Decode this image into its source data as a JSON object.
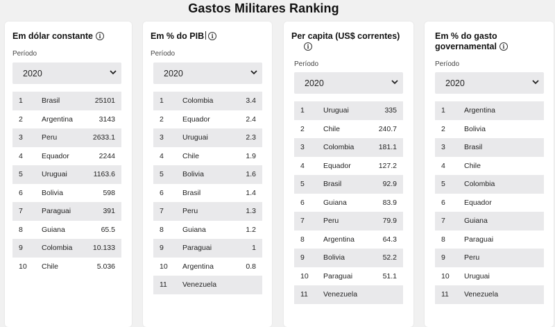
{
  "title": "Gastos Militares Ranking",
  "colors": {
    "row_shade": "#e9e9eb",
    "card_bg": "#ffffff",
    "page_bg": "#f1f1f1"
  },
  "cards": [
    {
      "title": "Em dólar constante",
      "periodo_label": "Período",
      "year": "2020",
      "rows": [
        {
          "rank": "1",
          "country": "Brasil",
          "value": "25101"
        },
        {
          "rank": "2",
          "country": "Argentina",
          "value": "3143"
        },
        {
          "rank": "3",
          "country": "Peru",
          "value": "2633.1"
        },
        {
          "rank": "4",
          "country": "Equador",
          "value": "2244"
        },
        {
          "rank": "5",
          "country": "Uruguai",
          "value": "1163.6"
        },
        {
          "rank": "6",
          "country": "Bolivia",
          "value": "598"
        },
        {
          "rank": "7",
          "country": "Paraguai",
          "value": "391"
        },
        {
          "rank": "8",
          "country": "Guiana",
          "value": "65.5"
        },
        {
          "rank": "9",
          "country": "Colombia",
          "value": "10.133"
        },
        {
          "rank": "10",
          "country": "Chile",
          "value": "5.036"
        }
      ]
    },
    {
      "title": "Em % do PIB",
      "periodo_label": "Período",
      "year": "2020",
      "rows": [
        {
          "rank": "1",
          "country": "Colombia",
          "value": "3.4"
        },
        {
          "rank": "2",
          "country": "Equador",
          "value": "2.4"
        },
        {
          "rank": "3",
          "country": "Uruguai",
          "value": "2.3"
        },
        {
          "rank": "4",
          "country": "Chile",
          "value": "1.9"
        },
        {
          "rank": "5",
          "country": "Bolivia",
          "value": "1.6"
        },
        {
          "rank": "6",
          "country": "Brasil",
          "value": "1.4"
        },
        {
          "rank": "7",
          "country": "Peru",
          "value": "1.3"
        },
        {
          "rank": "8",
          "country": "Guiana",
          "value": "1.2"
        },
        {
          "rank": "9",
          "country": "Paraguai",
          "value": "1"
        },
        {
          "rank": "10",
          "country": "Argentina",
          "value": "0.8"
        },
        {
          "rank": "11",
          "country": "Venezuela",
          "value": ""
        }
      ]
    },
    {
      "title": "Per capita (US$ correntes)",
      "periodo_label": "Período",
      "year": "2020",
      "rows": [
        {
          "rank": "1",
          "country": "Uruguai",
          "value": "335"
        },
        {
          "rank": "2",
          "country": "Chile",
          "value": "240.7"
        },
        {
          "rank": "3",
          "country": "Colombia",
          "value": "181.1"
        },
        {
          "rank": "4",
          "country": "Equador",
          "value": "127.2"
        },
        {
          "rank": "5",
          "country": "Brasil",
          "value": "92.9"
        },
        {
          "rank": "6",
          "country": "Guiana",
          "value": "83.9"
        },
        {
          "rank": "7",
          "country": "Peru",
          "value": "79.9"
        },
        {
          "rank": "8",
          "country": "Argentina",
          "value": "64.3"
        },
        {
          "rank": "9",
          "country": "Bolivia",
          "value": "52.2"
        },
        {
          "rank": "10",
          "country": "Paraguai",
          "value": "51.1"
        },
        {
          "rank": "11",
          "country": "Venezuela",
          "value": ""
        }
      ]
    },
    {
      "title": "Em % do gasto governamental",
      "periodo_label": "Período",
      "year": "2020",
      "rows": [
        {
          "rank": "1",
          "country": "Argentina",
          "value": ""
        },
        {
          "rank": "2",
          "country": "Bolivia",
          "value": ""
        },
        {
          "rank": "3",
          "country": "Brasil",
          "value": ""
        },
        {
          "rank": "4",
          "country": "Chile",
          "value": ""
        },
        {
          "rank": "5",
          "country": "Colombia",
          "value": ""
        },
        {
          "rank": "6",
          "country": "Equador",
          "value": ""
        },
        {
          "rank": "7",
          "country": "Guiana",
          "value": ""
        },
        {
          "rank": "8",
          "country": "Paraguai",
          "value": ""
        },
        {
          "rank": "9",
          "country": "Peru",
          "value": ""
        },
        {
          "rank": "10",
          "country": "Uruguai",
          "value": ""
        },
        {
          "rank": "11",
          "country": "Venezuela",
          "value": ""
        }
      ]
    }
  ]
}
